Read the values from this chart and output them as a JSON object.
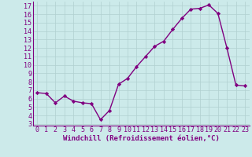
{
  "x": [
    0,
    1,
    2,
    3,
    4,
    5,
    6,
    7,
    8,
    9,
    10,
    11,
    12,
    13,
    14,
    15,
    16,
    17,
    18,
    19,
    20,
    21,
    22,
    23
  ],
  "y": [
    6.7,
    6.6,
    5.5,
    6.3,
    5.7,
    5.5,
    5.4,
    3.5,
    4.6,
    7.7,
    8.4,
    9.8,
    11.0,
    12.2,
    12.8,
    14.2,
    15.5,
    16.6,
    16.7,
    17.1,
    16.1,
    12.0,
    7.6,
    7.5
  ],
  "line_color": "#800080",
  "marker": "D",
  "markersize": 2.2,
  "linewidth": 1.0,
  "xlabel": "Windchill (Refroidissement éolien,°C)",
  "xlim": [
    -0.5,
    23.5
  ],
  "ylim": [
    2.8,
    17.5
  ],
  "yticks": [
    3,
    4,
    5,
    6,
    7,
    8,
    9,
    10,
    11,
    12,
    13,
    14,
    15,
    16,
    17
  ],
  "xticks": [
    0,
    1,
    2,
    3,
    4,
    5,
    6,
    7,
    8,
    9,
    10,
    11,
    12,
    13,
    14,
    15,
    16,
    17,
    18,
    19,
    20,
    21,
    22,
    23
  ],
  "bg_color": "#cceaea",
  "grid_color": "#b0d0d0",
  "axis_color": "#800080",
  "tick_color": "#800080",
  "label_color": "#800080",
  "xlabel_fontsize": 6.5,
  "tick_fontsize": 6.0
}
